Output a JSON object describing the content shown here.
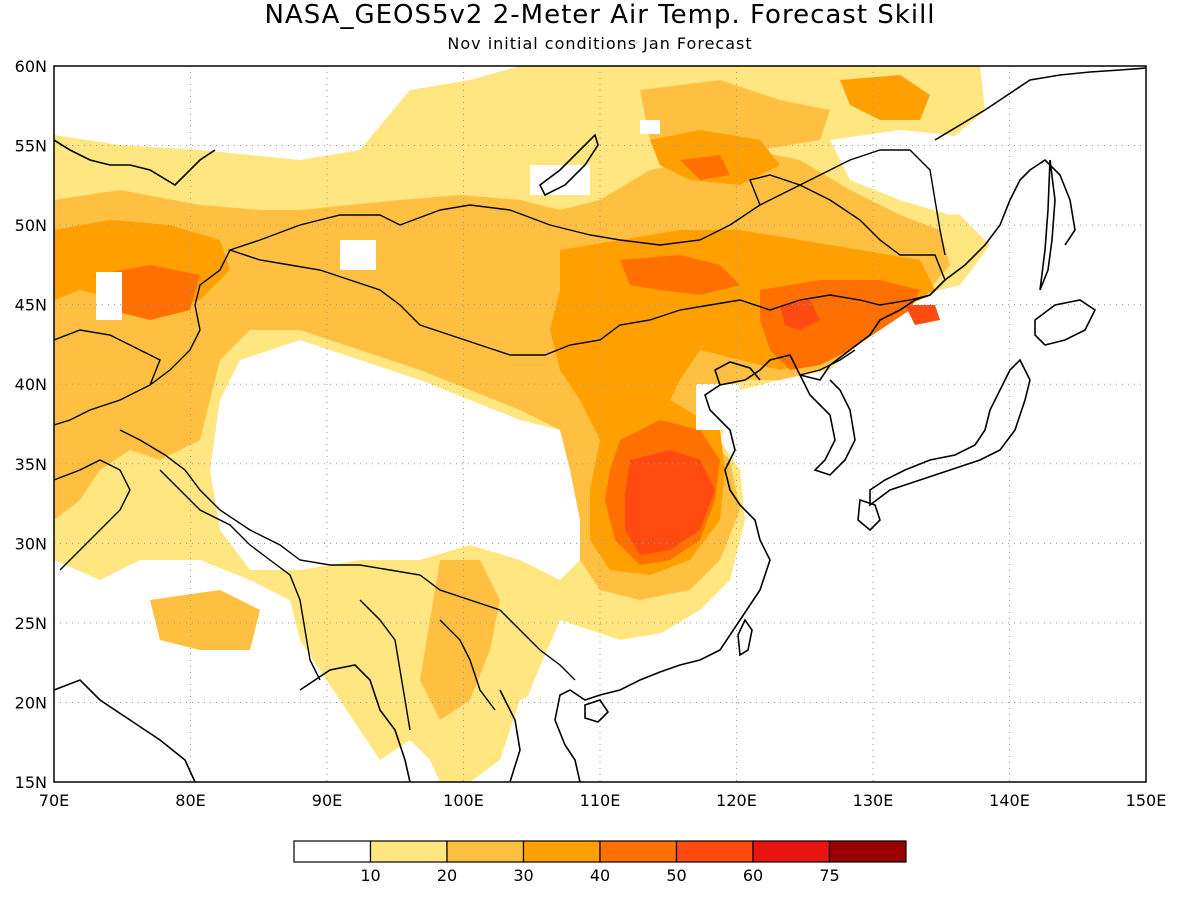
{
  "title": "NASA_GEOS5v2 2-Meter Air Temp. Forecast Skill",
  "subtitle": "Nov initial conditions  Jan Forecast",
  "map": {
    "lon_range": [
      70,
      150
    ],
    "lat_range": [
      15,
      60
    ],
    "lon_labels": [
      "70E",
      "80E",
      "90E",
      "100E",
      "110E",
      "120E",
      "130E",
      "140E",
      "150E"
    ],
    "lat_labels": [
      "15N",
      "20N",
      "25N",
      "30N",
      "35N",
      "40N",
      "45N",
      "50N",
      "55N",
      "60N"
    ],
    "grid": "dotted"
  },
  "colorbar": {
    "colors": [
      "#ffffff",
      "#ffe680",
      "#ffc042",
      "#ffa000",
      "#ff7000",
      "#ff4a10",
      "#e81410",
      "#9a0000"
    ],
    "tick_labels": [
      "10",
      "20",
      "30",
      "40",
      "50",
      "60",
      "75"
    ]
  }
}
